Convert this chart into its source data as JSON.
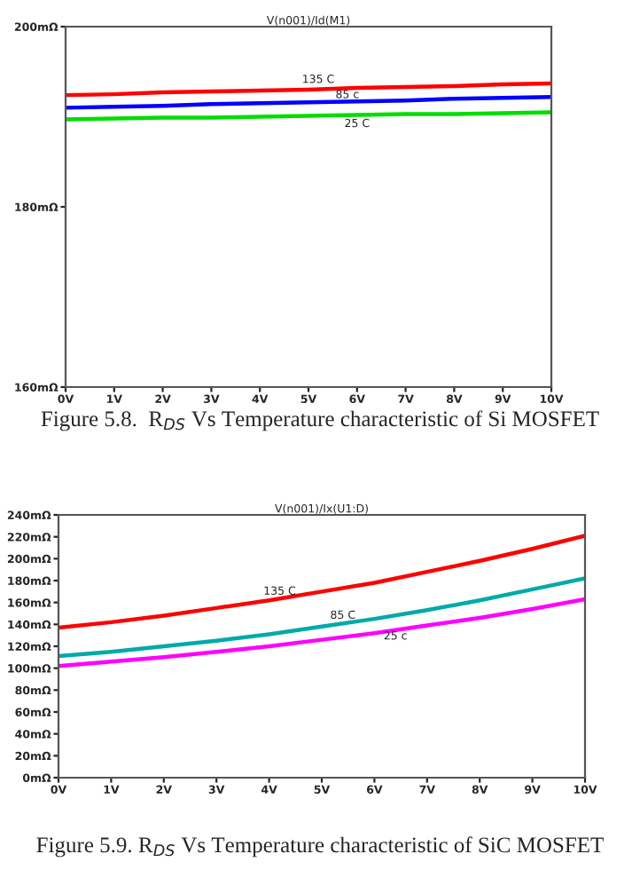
{
  "chart_data": [
    {
      "type": "line",
      "title": "V(n001)/Id(M1)",
      "x": [
        0,
        1,
        2,
        3,
        4,
        5,
        6,
        7,
        8,
        9,
        10
      ],
      "series": [
        {
          "color": "#ff0000",
          "values": [
            192.4,
            192.5,
            192.7,
            192.8,
            192.9,
            193.0,
            193.2,
            193.3,
            193.4,
            193.6,
            193.7
          ]
        },
        {
          "color": "#0000ff",
          "values": [
            191.0,
            191.1,
            191.2,
            191.4,
            191.5,
            191.6,
            191.7,
            191.8,
            192.0,
            192.1,
            192.2
          ]
        },
        {
          "color": "#00dd00",
          "values": [
            189.7,
            189.8,
            189.9,
            189.9,
            190.0,
            190.1,
            190.2,
            190.3,
            190.3,
            190.4,
            190.5
          ]
        }
      ],
      "xlim": [
        0,
        10
      ],
      "xticks": [
        {
          "value": 0,
          "label": "0V"
        },
        {
          "value": 1,
          "label": "1V"
        },
        {
          "value": 2,
          "label": "2V"
        },
        {
          "value": 3,
          "label": "3V"
        },
        {
          "value": 4,
          "label": "4V"
        },
        {
          "value": 5,
          "label": "5V"
        },
        {
          "value": 6,
          "label": "6V"
        },
        {
          "value": 7,
          "label": "7V"
        },
        {
          "value": 8,
          "label": "8V"
        },
        {
          "value": 9,
          "label": "9V"
        },
        {
          "value": 10,
          "label": "10V"
        }
      ],
      "ylim": [
        160,
        200
      ],
      "yticks": [
        {
          "value": 160,
          "label": "160mΩ"
        },
        {
          "value": 180,
          "label": "180mΩ"
        },
        {
          "value": 200,
          "label": "200mΩ"
        }
      ],
      "grid": false,
      "legend": false,
      "annotations": [
        {
          "text": "135 C",
          "x": 5.2,
          "y": 194.1
        },
        {
          "text": "85 c",
          "x": 5.8,
          "y": 192.4
        },
        {
          "text": "25 C",
          "x": 6.0,
          "y": 189.2
        },
        "Figure 5.8.  R$_{DS}$ Vs Temperature characteristic of Si MOSFET"
      ]
    },
    {
      "type": "line",
      "title": "V(n001)/Ix(U1:D)",
      "x": [
        0,
        1,
        2,
        3,
        4,
        5,
        6,
        7,
        8,
        9,
        10
      ],
      "series": [
        {
          "color": "#ff0000",
          "values": [
            137,
            142,
            148,
            155,
            162,
            170,
            178,
            188,
            198,
            209,
            221
          ]
        },
        {
          "color": "#00aaaa",
          "values": [
            111,
            115,
            120,
            125,
            131,
            138,
            145,
            153,
            162,
            172,
            182
          ]
        },
        {
          "color": "#ff00ff",
          "values": [
            102,
            106,
            110,
            115,
            120,
            126,
            132,
            139,
            146,
            154,
            163
          ]
        }
      ],
      "xlim": [
        0,
        10
      ],
      "xticks": [
        {
          "value": 0,
          "label": "0V"
        },
        {
          "value": 1,
          "label": "1V"
        },
        {
          "value": 2,
          "label": "2V"
        },
        {
          "value": 3,
          "label": "3V"
        },
        {
          "value": 4,
          "label": "4V"
        },
        {
          "value": 5,
          "label": "5V"
        },
        {
          "value": 6,
          "label": "6V"
        },
        {
          "value": 7,
          "label": "7V"
        },
        {
          "value": 8,
          "label": "8V"
        },
        {
          "value": 9,
          "label": "9V"
        },
        {
          "value": 10,
          "label": "10V"
        }
      ],
      "ylim": [
        0,
        240
      ],
      "yticks": [
        {
          "value": 0,
          "label": "0mΩ"
        },
        {
          "value": 20,
          "label": "20mΩ"
        },
        {
          "value": 40,
          "label": "40mΩ"
        },
        {
          "value": 60,
          "label": "60mΩ"
        },
        {
          "value": 80,
          "label": "80mΩ"
        },
        {
          "value": 100,
          "label": "100mΩ"
        },
        {
          "value": 120,
          "label": "120mΩ"
        },
        {
          "value": 140,
          "label": "140mΩ"
        },
        {
          "value": 160,
          "label": "160mΩ"
        },
        {
          "value": 180,
          "label": "180mΩ"
        },
        {
          "value": 200,
          "label": "200mΩ"
        },
        {
          "value": 220,
          "label": "220mΩ"
        },
        {
          "value": 240,
          "label": "240mΩ"
        }
      ],
      "grid": false,
      "legend": false,
      "annotations": [
        {
          "text": "135 C",
          "x": 4.2,
          "y": 170
        },
        {
          "text": "85 C",
          "x": 5.4,
          "y": 148
        },
        {
          "text": "25 c",
          "x": 6.4,
          "y": 129
        },
        "Figure 5.9. R$_{DS}$ Vs Temperature characteristic of SiC MOSFET"
      ]
    }
  ]
}
